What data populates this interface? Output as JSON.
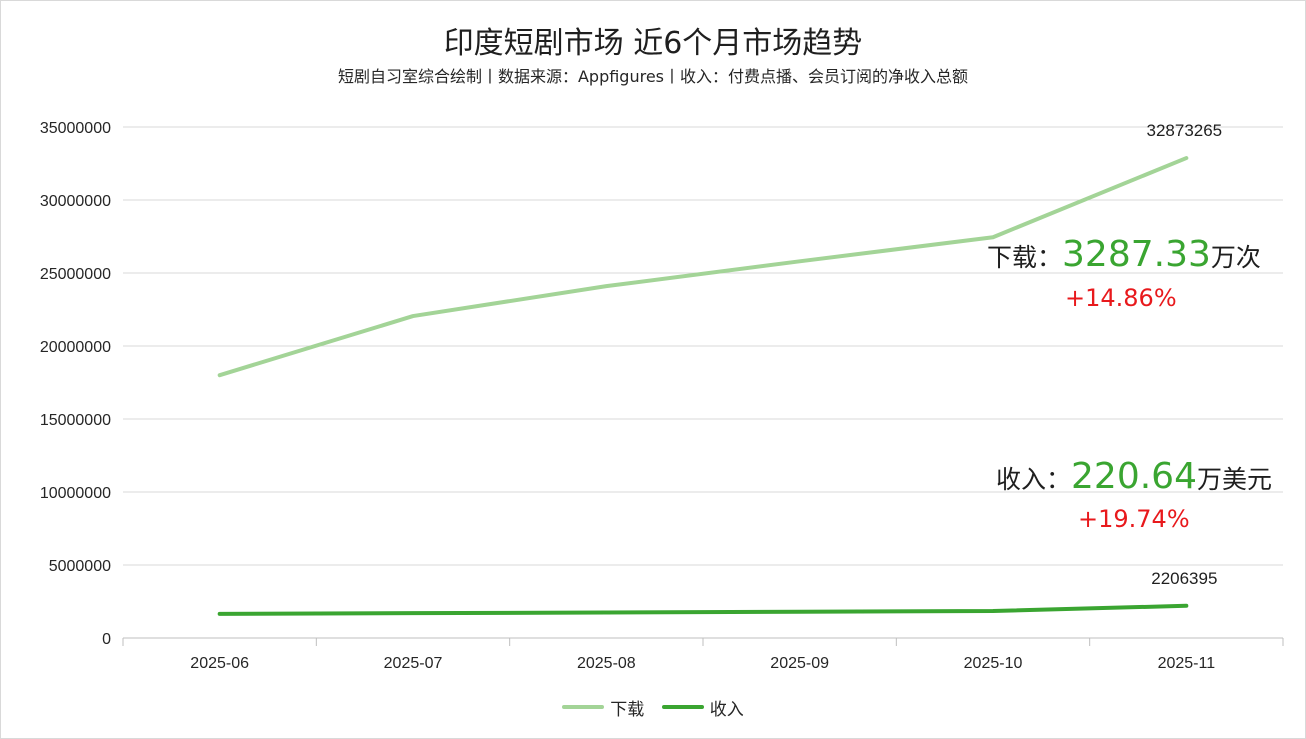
{
  "title": "印度短剧市场 近6个月市场趋势",
  "subtitle": "短剧自习室综合绘制丨数据来源：Appfigures丨收入：付费点播、会员订阅的净收入总额",
  "colors": {
    "downloads": "#a3d497",
    "revenue": "#3aa531",
    "grid": "#d9d9d9",
    "axis": "#bfbfbf",
    "highlight": "#3aa531",
    "change": "#e8191c"
  },
  "annotations": {
    "downloads": {
      "label": "下载：",
      "value": "3287.33",
      "unit": "万次",
      "change": "+14.86%"
    },
    "revenue": {
      "label": "收入：",
      "value": "220.64",
      "unit": "万美元",
      "change": "+19.74%"
    }
  },
  "chart_data": {
    "type": "line",
    "categories": [
      "2025-06",
      "2025-07",
      "2025-08",
      "2025-09",
      "2025-10",
      "2025-11"
    ],
    "series": [
      {
        "name": "下载",
        "values": [
          18000000,
          22050000,
          24100000,
          25800000,
          27450000,
          32873265
        ],
        "data_labels": [
          "",
          "",
          "",
          "",
          "",
          "32873265"
        ]
      },
      {
        "name": "收入",
        "values": [
          1650000,
          1700000,
          1750000,
          1800000,
          1850000,
          2206395
        ],
        "data_labels": [
          "",
          "",
          "",
          "",
          "",
          "2206395"
        ]
      }
    ],
    "yticks": [
      "0",
      "5000000",
      "10000000",
      "15000000",
      "20000000",
      "25000000",
      "30000000",
      "35000000"
    ],
    "ylim": [
      0,
      35000000
    ],
    "grid": true,
    "legend": "bottom"
  }
}
